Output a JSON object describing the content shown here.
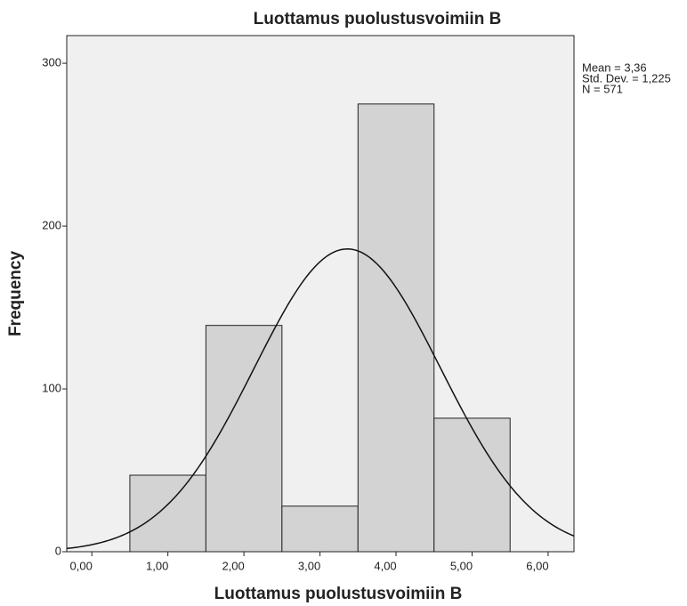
{
  "chart_data": {
    "type": "histogram",
    "title": "Luottamus puolustusvoimiin B",
    "x_label": "Luottamus puolustusvoimiin B",
    "y_label": "Frequency",
    "bins": [
      0.5,
      1.5,
      2.5,
      3.5,
      4.5,
      5.5
    ],
    "values": [
      47,
      139,
      28,
      275,
      82
    ],
    "color": "#d3d3d3",
    "xlim": [
      -0.33,
      6.34
    ],
    "xticks": [
      {
        "value": 0,
        "label": "0,00"
      },
      {
        "value": 1,
        "label": "1,00"
      },
      {
        "value": 2,
        "label": "2,00"
      },
      {
        "value": 3,
        "label": "3,00"
      },
      {
        "value": 4,
        "label": "4,00"
      },
      {
        "value": 5,
        "label": "5,00"
      },
      {
        "value": 6,
        "label": "6,00"
      }
    ],
    "ylim": [
      0,
      317
    ],
    "yticks": [
      0,
      100,
      200,
      300
    ],
    "stats": [
      {
        "value": 3.36,
        "label": "Mean = 3,36"
      },
      {
        "value": 1.225,
        "label": "Std. Dev. = 1,225"
      },
      {
        "value": 571,
        "label": "N = 571"
      }
    ]
  }
}
